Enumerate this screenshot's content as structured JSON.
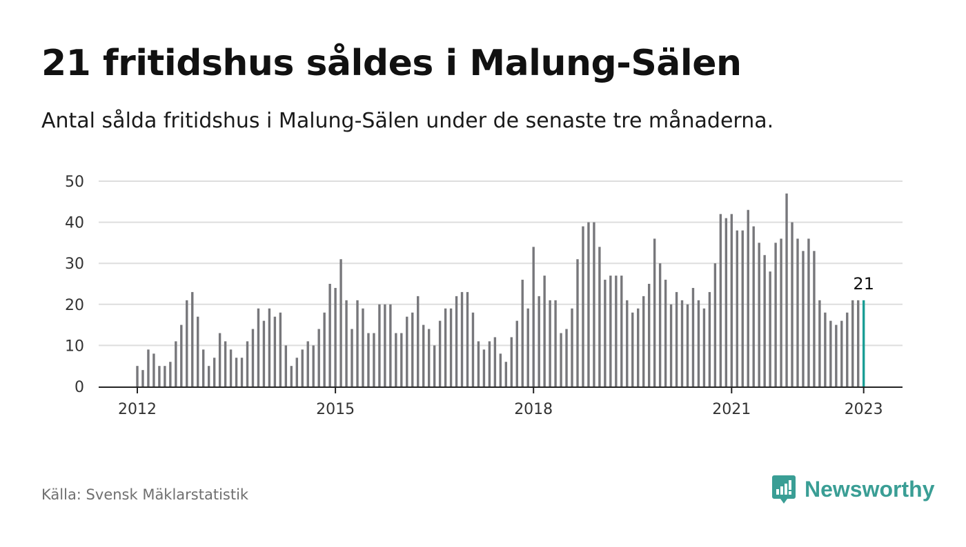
{
  "header": {
    "title": "21 fritidshus såldes i Malung-Sälen",
    "subtitle": "Antal sålda fritidshus i Malung-Sälen under de senaste tre månaderna."
  },
  "footer": {
    "source": "Källa: Svensk Mäklarstatistik",
    "brand": "Newsworthy",
    "brand_icon": "bar-chart-speech-bubble-icon"
  },
  "colors": {
    "bar": "#77777b",
    "highlight": "#1a9e95",
    "grid": "#dddddd",
    "axis": "#222222",
    "brand": "#3a9e95"
  },
  "chart_data": {
    "type": "bar",
    "x_start": "2012-01",
    "x_end": "2023-01",
    "frequency": "monthly",
    "x_ticks": [
      "2012",
      "2015",
      "2018",
      "2021",
      "2023"
    ],
    "y_ticks": [
      0,
      10,
      20,
      30,
      40,
      50
    ],
    "ylim": [
      0,
      50
    ],
    "grid": true,
    "values": [
      5,
      4,
      9,
      8,
      5,
      5,
      6,
      11,
      15,
      21,
      23,
      17,
      9,
      5,
      7,
      13,
      11,
      9,
      7,
      7,
      11,
      14,
      19,
      16,
      19,
      17,
      18,
      10,
      5,
      7,
      9,
      11,
      10,
      14,
      18,
      25,
      24,
      31,
      21,
      14,
      21,
      19,
      13,
      13,
      20,
      20,
      20,
      13,
      13,
      17,
      18,
      22,
      15,
      14,
      10,
      16,
      19,
      19,
      22,
      23,
      23,
      18,
      11,
      9,
      11,
      12,
      8,
      6,
      12,
      16,
      26,
      19,
      34,
      22,
      27,
      21,
      21,
      13,
      14,
      19,
      31,
      39,
      40,
      40,
      34,
      26,
      27,
      27,
      27,
      21,
      18,
      19,
      22,
      25,
      36,
      30,
      26,
      20,
      23,
      21,
      20,
      24,
      21,
      19,
      23,
      30,
      42,
      41,
      42,
      38,
      38,
      43,
      39,
      35,
      32,
      28,
      35,
      36,
      47,
      40,
      36,
      33,
      36,
      33,
      21,
      18,
      16,
      15,
      16,
      18,
      21,
      21,
      21
    ],
    "highlight_last": true,
    "annotation": "21"
  }
}
